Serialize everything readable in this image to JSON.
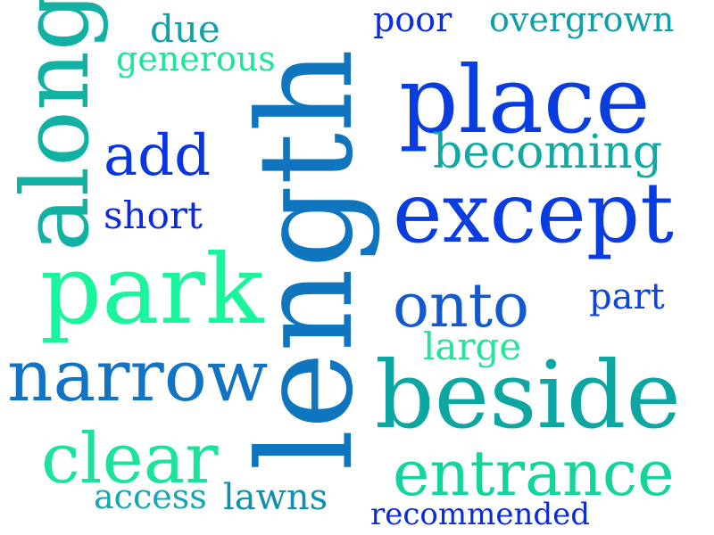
{
  "words": {
    "place": "place",
    "except": "except",
    "beside": "beside",
    "length": "length",
    "park": "park",
    "along": "along",
    "narrow": "narrow",
    "clear": "clear",
    "entrance": "entrance",
    "onto": "onto",
    "add": "add",
    "becoming": "becoming",
    "overgrown": "overgrown",
    "poor": "poor",
    "due": "due",
    "generous": "generous",
    "short": "short",
    "part": "part",
    "large": "large",
    "access": "access",
    "lawns": "lawns",
    "recommended": "recommended"
  },
  "colors": {
    "background": "#ffffff",
    "blue": "#0a3de0",
    "teal": "#0ea6a3",
    "mid_blue": "#1173c4",
    "green": "#19f59c"
  }
}
